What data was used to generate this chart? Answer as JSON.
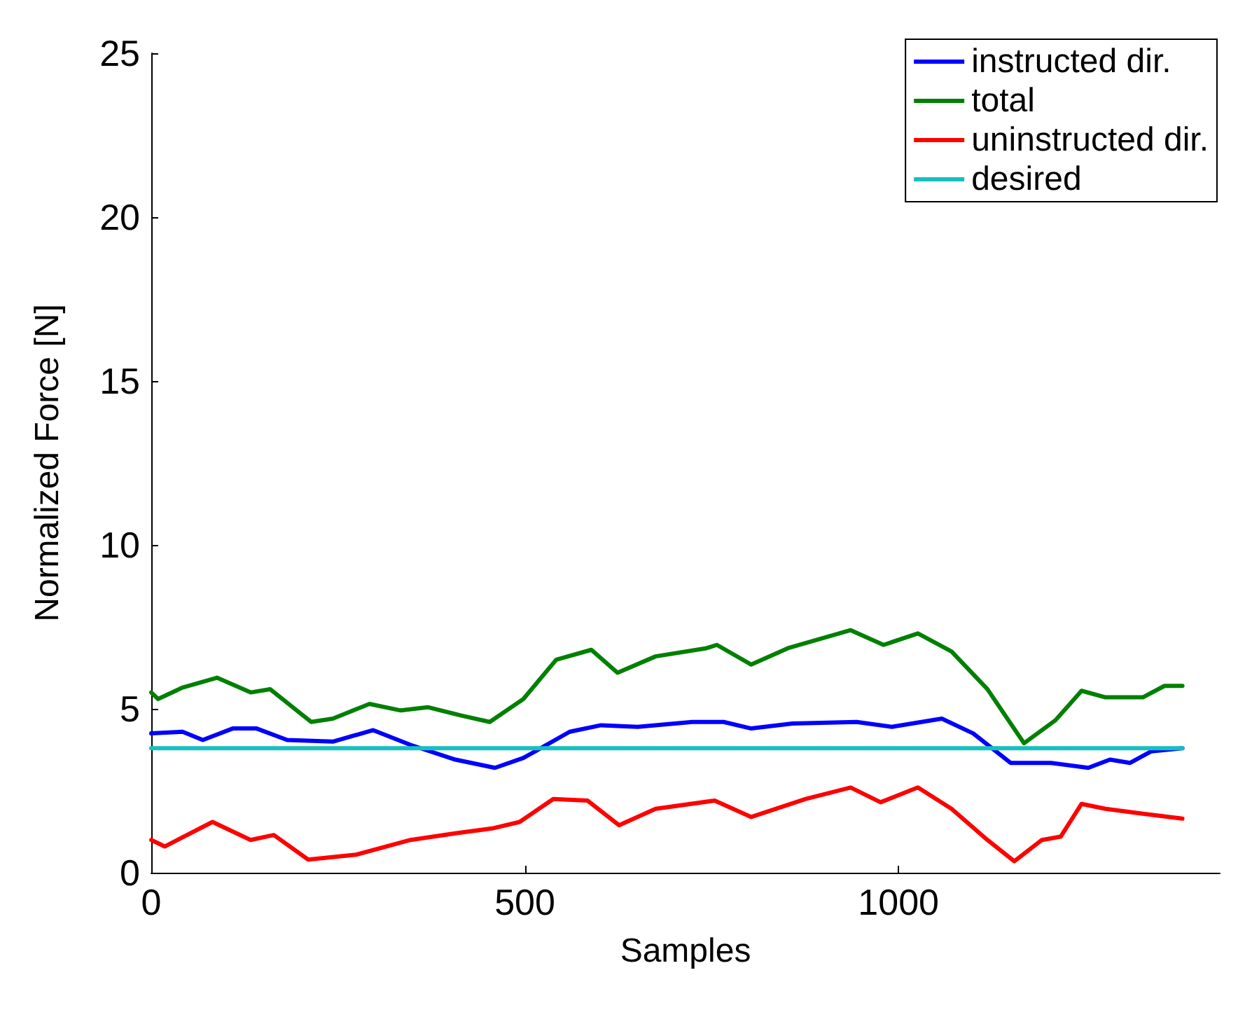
{
  "chart_data": {
    "type": "line",
    "xlabel": "Samples",
    "ylabel": "Normalized Force [N]",
    "xlim": [
      0,
      1430
    ],
    "xticks": [
      0,
      500,
      1000
    ],
    "ylim": [
      0,
      25
    ],
    "yticks": [
      0,
      5,
      10,
      15,
      20,
      25
    ],
    "grid": false,
    "legend": "top right",
    "marker": "none",
    "line_style": "solid",
    "series": [
      {
        "name": "instructed dir.",
        "color": "#0000ff",
        "x": [
          0,
          42,
          69,
          109,
          141,
          182,
          243,
          297,
          347,
          407,
          460,
          498,
          560,
          602,
          651,
          724,
          766,
          803,
          858,
          944,
          991,
          1058,
          1100,
          1150,
          1204,
          1254,
          1283,
          1310,
          1338,
          1380
        ],
        "values": [
          4.25,
          4.3,
          4.05,
          4.4,
          4.4,
          4.05,
          4.0,
          4.35,
          3.9,
          3.45,
          3.2,
          3.5,
          4.3,
          4.5,
          4.45,
          4.6,
          4.6,
          4.4,
          4.55,
          4.6,
          4.45,
          4.7,
          4.25,
          3.35,
          3.35,
          3.2,
          3.45,
          3.35,
          3.7,
          3.8
        ]
      },
      {
        "name": "total",
        "color": "#008000",
        "x": [
          0,
          9,
          42,
          88,
          133,
          159,
          214,
          243,
          292,
          334,
          370,
          414,
          453,
          498,
          542,
          589,
          624,
          675,
          743,
          757,
          803,
          852,
          936,
          980,
          1026,
          1071,
          1119,
          1168,
          1210,
          1245,
          1277,
          1327,
          1356,
          1380
        ],
        "values": [
          5.5,
          5.3,
          5.65,
          5.95,
          5.5,
          5.6,
          4.6,
          4.7,
          5.15,
          4.95,
          5.05,
          4.8,
          4.6,
          5.3,
          6.5,
          6.8,
          6.1,
          6.6,
          6.85,
          6.95,
          6.35,
          6.85,
          7.4,
          6.95,
          7.3,
          6.75,
          5.6,
          3.95,
          4.65,
          5.55,
          5.35,
          5.35,
          5.7,
          5.7
        ]
      },
      {
        "name": "uninstructed dir.",
        "color": "#ff0000",
        "x": [
          0,
          18,
          82,
          133,
          164,
          210,
          274,
          347,
          407,
          456,
          493,
          538,
          584,
          626,
          675,
          754,
          803,
          876,
          936,
          976,
          1026,
          1071,
          1119,
          1155,
          1192,
          1217,
          1245,
          1277,
          1327,
          1380
        ],
        "values": [
          1.0,
          0.8,
          1.55,
          1.0,
          1.15,
          0.4,
          0.55,
          1.0,
          1.2,
          1.35,
          1.55,
          2.25,
          2.2,
          1.45,
          1.95,
          2.2,
          1.7,
          2.25,
          2.6,
          2.15,
          2.6,
          1.95,
          1.0,
          0.35,
          1.0,
          1.1,
          2.1,
          1.95,
          1.8,
          1.65
        ]
      },
      {
        "name": "desired",
        "color": "#17bfbf",
        "x": [
          0,
          1380
        ],
        "values": [
          3.8,
          3.8
        ]
      }
    ]
  }
}
